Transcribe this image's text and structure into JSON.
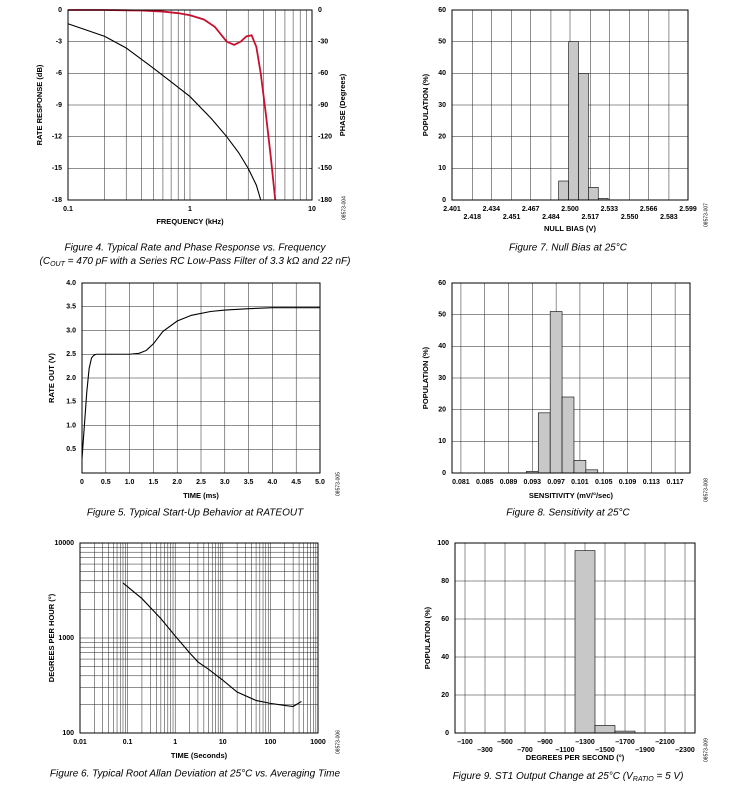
{
  "chart_data": [
    {
      "type": "line",
      "xlog": true,
      "xlim": [
        0.1,
        10
      ],
      "xticks": [
        0.1,
        1,
        10
      ],
      "ylim": [
        -18,
        0
      ],
      "yticks": [
        0,
        -3,
        -6,
        -9,
        -12,
        -15,
        -18
      ],
      "y2lim": [
        -180,
        0
      ],
      "y2ticks": [
        0,
        -30,
        -60,
        -90,
        -120,
        -150,
        -180
      ],
      "grid": true,
      "ylabel": "RATE RESPONSE (dB)",
      "y2label": "PHASE (Degrees)",
      "xlabel": "FREQUENCY (kHz)",
      "series": [
        {
          "color": "#c8102e",
          "x": [
            0.1,
            0.2,
            0.4,
            0.6,
            0.8,
            1,
            1.3,
            1.6,
            2,
            2.3,
            2.6,
            2.9,
            3.2,
            3.5,
            3.8,
            4.2,
            4.6,
            5
          ],
          "values": [
            0,
            0,
            -0.05,
            -0.15,
            -0.3,
            -0.5,
            -0.9,
            -1.6,
            -3,
            -3.3,
            -3,
            -2.5,
            -2.4,
            -3.5,
            -6,
            -10,
            -14,
            -18
          ]
        },
        {
          "color": "#000000",
          "axis": "y2",
          "x": [
            0.1,
            0.2,
            0.3,
            0.5,
            0.7,
            1,
            1.5,
            2,
            2.5,
            3,
            3.5,
            3.8
          ],
          "values": [
            -13,
            -25,
            -36,
            -55,
            -68,
            -82,
            -103,
            -120,
            -135,
            -150,
            -166,
            -180
          ]
        }
      ],
      "caption": "Figure 4. Typical Rate and Phase Response vs. Frequency",
      "caption2": [
        "(C",
        "OUT",
        " = 470 pF with a Series RC Low-Pass Filter of 3.3 kΩ and 22 nF)"
      ],
      "code": "08573-004"
    },
    {
      "type": "histogram",
      "xlim": [
        2.401,
        2.599
      ],
      "xticks": [
        2.401,
        2.418,
        2.434,
        2.451,
        2.467,
        2.484,
        {
          "value": 2.5,
          "label": "2.500"
        },
        2.517,
        2.533,
        {
          "value": 2.55,
          "label": "2.550"
        },
        2.566,
        2.583,
        2.599
      ],
      "xtick_rows": 2,
      "ylim": [
        0,
        60
      ],
      "yticks": [
        0,
        10,
        20,
        30,
        40,
        50,
        60
      ],
      "grid": true,
      "bins": [
        2.4905,
        2.4988,
        2.5071,
        2.5154,
        2.5237,
        2.532
      ],
      "values": [
        6,
        50,
        40,
        4,
        0.5
      ],
      "color": "#c8c8c8",
      "ylabel": "POPULATION (%)",
      "xlabel": "NULL BIAS (V)",
      "caption": "Figure 7. Null Bias at 25°C",
      "code": "08573-007"
    },
    {
      "type": "line",
      "xlim": [
        0,
        5
      ],
      "xticks": [
        0,
        0.5,
        {
          "value": 1,
          "label": "1.0"
        },
        1.5,
        {
          "value": 2,
          "label": "2.0"
        },
        2.5,
        {
          "value": 3,
          "label": "3.0"
        },
        3.5,
        {
          "value": 4,
          "label": "4.0"
        },
        4.5,
        {
          "value": 5,
          "label": "5.0"
        }
      ],
      "ylim": [
        0,
        4
      ],
      "yticks": [
        0.5,
        {
          "value": 1,
          "label": "1.0"
        },
        1.5,
        {
          "value": 2,
          "label": "2.0"
        },
        2.5,
        {
          "value": 3,
          "label": "3.0"
        },
        3.5,
        {
          "value": 4,
          "label": "4.0"
        }
      ],
      "grid": true,
      "color": "#000000",
      "x": [
        0,
        0.05,
        0.1,
        0.15,
        0.2,
        0.25,
        0.3,
        0.5,
        0.8,
        1.0,
        1.2,
        1.35,
        1.5,
        1.7,
        2.0,
        2.3,
        2.7,
        3.0,
        3.5,
        4.0,
        4.5,
        5.0
      ],
      "values": [
        0.3,
        1.0,
        1.7,
        2.2,
        2.42,
        2.48,
        2.5,
        2.5,
        2.5,
        2.5,
        2.52,
        2.58,
        2.72,
        2.98,
        3.2,
        3.32,
        3.4,
        3.43,
        3.46,
        3.48,
        3.48,
        3.48
      ],
      "ylabel": "RATE OUT (V)",
      "xlabel": "TIME (ms)",
      "caption": "Figure 5. Typical Start-Up Behavior at RATEOUT",
      "code": "08573-005"
    },
    {
      "type": "histogram",
      "xlim": [
        0.0795,
        0.1195
      ],
      "xticks": [
        0.081,
        0.085,
        0.089,
        0.093,
        0.097,
        0.101,
        0.105,
        0.109,
        0.113,
        0.117
      ],
      "ylim": [
        0,
        60
      ],
      "yticks": [
        0,
        10,
        20,
        30,
        40,
        50,
        60
      ],
      "grid": true,
      "bins": [
        0.092,
        0.094,
        0.096,
        0.098,
        0.1,
        0.102,
        0.104
      ],
      "values": [
        0.5,
        19,
        51,
        24,
        4,
        1
      ],
      "color": "#c8c8c8",
      "ylabel": "POPULATION (%)",
      "xlabel": "SENSITIVITY (mV/°/sec)",
      "caption": "Figure 8. Sensitivity at 25°C",
      "code": "08573-008"
    },
    {
      "type": "line",
      "xlog": true,
      "ylog": true,
      "xlim": [
        0.01,
        1000
      ],
      "xticks": [
        0.01,
        0.1,
        1,
        10,
        100,
        1000
      ],
      "ylim": [
        100,
        10000
      ],
      "yticks": [
        100,
        1000,
        10000
      ],
      "grid": true,
      "color": "#000000",
      "x": [
        0.08,
        0.2,
        0.5,
        1,
        2,
        3,
        5,
        10,
        20,
        50,
        100,
        200,
        300,
        450
      ],
      "values": [
        3800,
        2600,
        1600,
        1050,
        700,
        560,
        470,
        360,
        270,
        220,
        205,
        195,
        190,
        215
      ],
      "ylabel": "DEGREES PER HOUR (°)",
      "xlabel": "TIME (Seconds)",
      "caption": "Figure 6. Typical Root Allan Deviation at 25°C vs. Averaging Time",
      "code": "08573-006"
    },
    {
      "type": "histogram",
      "xlim": [
        0,
        -2400
      ],
      "xticks": [
        {
          "value": -100,
          "label": "–100"
        },
        {
          "value": -300,
          "label": "–300"
        },
        {
          "value": -500,
          "label": "–500"
        },
        {
          "value": -700,
          "label": "–700"
        },
        {
          "value": -900,
          "label": "–900"
        },
        {
          "value": -1100,
          "label": "–1100"
        },
        {
          "value": -1300,
          "label": "–1300"
        },
        {
          "value": -1500,
          "label": "–1500"
        },
        {
          "value": -1700,
          "label": "–1700"
        },
        {
          "value": -1900,
          "label": "–1900"
        },
        {
          "value": -2100,
          "label": "–2100"
        },
        {
          "value": -2300,
          "label": "–2300"
        }
      ],
      "xtick_rows": 2,
      "ylim": [
        0,
        100
      ],
      "yticks": [
        0,
        20,
        40,
        60,
        80,
        100
      ],
      "grid": true,
      "bins": [
        -1200,
        -1400,
        -1600,
        -1800
      ],
      "values": [
        96,
        4,
        1
      ],
      "color": "#c8c8c8",
      "ylabel": "POPULATION (%)",
      "xlabel": "DEGREES PER SECOND (°)",
      "caption": [
        "Figure 9. ST1 Output Change at 25°C (V",
        "RATIO",
        " = 5 V)"
      ],
      "code": "08573-009"
    }
  ]
}
